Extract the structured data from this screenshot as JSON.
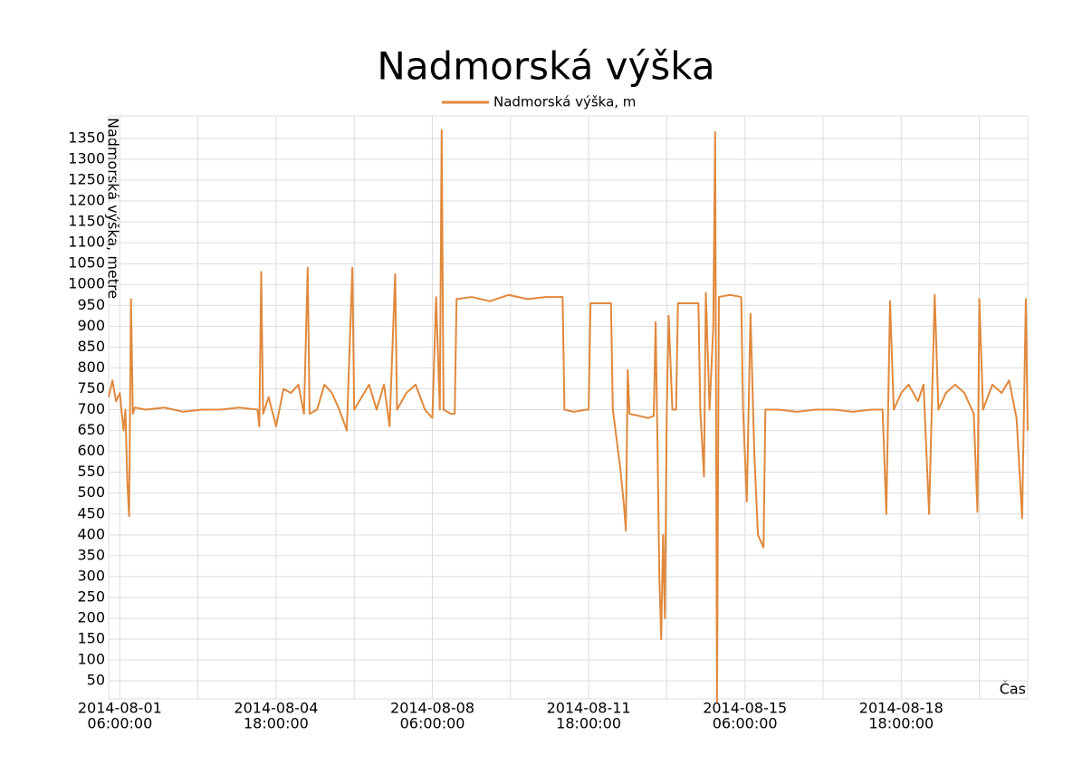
{
  "chart_data": {
    "type": "line",
    "title": "Nadmorská výška",
    "ylabel": "Nadmorská výška, metre",
    "xlabel": "Čas",
    "grid": true,
    "legend": "top",
    "xlim": [
      "2014-08-01 00:00:00",
      "2014-08-21 14:00:00"
    ],
    "ylim": [
      7,
      1404
    ],
    "yticks": [
      50,
      100,
      150,
      200,
      250,
      300,
      350,
      400,
      450,
      500,
      550,
      600,
      650,
      700,
      750,
      800,
      850,
      900,
      950,
      1000,
      1050,
      1100,
      1150,
      1200,
      1250,
      1300,
      1350
    ],
    "xticks": [
      {
        "value": "2014-08-01 06:00:00",
        "label": [
          "2014-08-01",
          "06:00:00"
        ]
      },
      {
        "value": "2014-08-03 00:00:00",
        "label": null
      },
      {
        "value": "2014-08-04 18:00:00",
        "label": [
          "2014-08-04",
          "18:00:00"
        ]
      },
      {
        "value": "2014-08-06 12:00:00",
        "label": null
      },
      {
        "value": "2014-08-08 06:00:00",
        "label": [
          "2014-08-08",
          "06:00:00"
        ]
      },
      {
        "value": "2014-08-10 00:00:00",
        "label": null
      },
      {
        "value": "2014-08-11 18:00:00",
        "label": [
          "2014-08-11",
          "18:00:00"
        ]
      },
      {
        "value": "2014-08-13 12:00:00",
        "label": null
      },
      {
        "value": "2014-08-15 06:00:00",
        "label": [
          "2014-08-15",
          "06:00:00"
        ]
      },
      {
        "value": "2014-08-17 00:00:00",
        "label": null
      },
      {
        "value": "2014-08-18 18:00:00",
        "label": [
          "2014-08-18",
          "18:00:00"
        ]
      },
      {
        "value": "2014-08-20 12:00:00",
        "label": null
      }
    ],
    "x": [
      "2014-08-01 00:00:00",
      "2014-08-01 02:00:00",
      "2014-08-01 04:00:00",
      "2014-08-01 06:00:00",
      "2014-08-01 08:00:00",
      "2014-08-01 09:00:00",
      "2014-08-01 10:00:00",
      "2014-08-01 11:00:00",
      "2014-08-01 12:00:00",
      "2014-08-01 13:00:00",
      "2014-08-01 14:00:00",
      "2014-08-01 20:00:00",
      "2014-08-02 06:00:00",
      "2014-08-02 16:00:00",
      "2014-08-03 02:00:00",
      "2014-08-03 12:00:00",
      "2014-08-03 22:00:00",
      "2014-08-04 08:00:00",
      "2014-08-04 09:00:00",
      "2014-08-04 10:00:00",
      "2014-08-04 11:00:00",
      "2014-08-04 14:00:00",
      "2014-08-04 18:00:00",
      "2014-08-04 22:00:00",
      "2014-08-05 02:00:00",
      "2014-08-05 06:00:00",
      "2014-08-05 09:00:00",
      "2014-08-05 11:00:00",
      "2014-08-05 12:00:00",
      "2014-08-05 16:00:00",
      "2014-08-05 20:00:00",
      "2014-08-06 00:00:00",
      "2014-08-06 04:00:00",
      "2014-08-06 08:00:00",
      "2014-08-06 11:00:00",
      "2014-08-06 12:00:00",
      "2014-08-06 16:00:00",
      "2014-08-06 20:00:00",
      "2014-08-07 00:00:00",
      "2014-08-07 04:00:00",
      "2014-08-07 07:00:00",
      "2014-08-07 10:00:00",
      "2014-08-07 11:00:00",
      "2014-08-07 16:00:00",
      "2014-08-07 21:00:00",
      "2014-08-08 02:00:00",
      "2014-08-08 06:00:00",
      "2014-08-08 08:00:00",
      "2014-08-08 10:00:00",
      "2014-08-08 11:00:00",
      "2014-08-08 12:00:00",
      "2014-08-08 16:00:00",
      "2014-08-08 18:00:00",
      "2014-08-08 19:00:00",
      "2014-08-09 03:00:00",
      "2014-08-09 13:00:00",
      "2014-08-09 23:00:00",
      "2014-08-10 09:00:00",
      "2014-08-10 19:00:00",
      "2014-08-11 04:00:00",
      "2014-08-11 05:00:00",
      "2014-08-11 10:00:00",
      "2014-08-11 17:00:00",
      "2014-08-11 18:00:00",
      "2014-08-11 19:00:00",
      "2014-08-12 01:00:00",
      "2014-08-12 06:00:00",
      "2014-08-12 07:00:00",
      "2014-08-12 11:00:00",
      "2014-08-12 13:00:00",
      "2014-08-12 14:00:00",
      "2014-08-12 15:00:00",
      "2014-08-12 16:00:00",
      "2014-08-12 21:00:00",
      "2014-08-13 02:00:00",
      "2014-08-13 05:00:00",
      "2014-08-13 06:00:00",
      "2014-08-13 07:00:00",
      "2014-08-13 08:00:00",
      "2014-08-13 09:00:00",
      "2014-08-13 10:00:00",
      "2014-08-13 11:00:00",
      "2014-08-13 12:00:00",
      "2014-08-13 13:00:00",
      "2014-08-13 15:00:00",
      "2014-08-13 17:00:00",
      "2014-08-13 18:00:00",
      "2014-08-14 00:00:00",
      "2014-08-14 05:00:00",
      "2014-08-14 06:00:00",
      "2014-08-14 08:00:00",
      "2014-08-14 09:00:00",
      "2014-08-14 11:00:00",
      "2014-08-14 13:00:00",
      "2014-08-14 14:00:00",
      "2014-08-14 15:00:00",
      "2014-08-14 16:00:00",
      "2014-08-14 22:00:00",
      "2014-08-15 04:00:00",
      "2014-08-15 05:00:00",
      "2014-08-15 07:00:00",
      "2014-08-15 09:00:00",
      "2014-08-15 11:00:00",
      "2014-08-15 13:00:00",
      "2014-08-15 16:00:00",
      "2014-08-15 17:00:00",
      "2014-08-16 00:00:00",
      "2014-08-16 10:00:00",
      "2014-08-16 20:00:00",
      "2014-08-17 06:00:00",
      "2014-08-17 16:00:00",
      "2014-08-18 02:00:00",
      "2014-08-18 08:00:00",
      "2014-08-18 10:00:00",
      "2014-08-18 12:00:00",
      "2014-08-18 14:00:00",
      "2014-08-18 18:00:00",
      "2014-08-18 22:00:00",
      "2014-08-19 03:00:00",
      "2014-08-19 06:00:00",
      "2014-08-19 09:00:00",
      "2014-08-19 12:00:00",
      "2014-08-19 14:00:00",
      "2014-08-19 18:00:00",
      "2014-08-19 23:00:00",
      "2014-08-20 04:00:00",
      "2014-08-20 09:00:00",
      "2014-08-20 11:00:00",
      "2014-08-20 12:00:00",
      "2014-08-20 14:00:00",
      "2014-08-20 19:00:00",
      "2014-08-21 00:00:00",
      "2014-08-21 04:00:00",
      "2014-08-21 08:00:00",
      "2014-08-21 11:00:00",
      "2014-08-21 13:00:00",
      "2014-08-21 14:00:00"
    ],
    "series": [
      {
        "name": "Nadmorská výška, m",
        "color": "#e0893d",
        "values": [
          730,
          770,
          720,
          740,
          650,
          700,
          530,
          445,
          965,
          690,
          705,
          700,
          705,
          695,
          700,
          700,
          705,
          700,
          660,
          1030,
          690,
          730,
          660,
          750,
          740,
          760,
          690,
          1040,
          690,
          700,
          760,
          740,
          700,
          650,
          1040,
          700,
          730,
          760,
          700,
          760,
          660,
          1025,
          700,
          740,
          760,
          700,
          680,
          970,
          700,
          1370,
          700,
          690,
          690,
          965,
          970,
          960,
          975,
          965,
          970,
          970,
          700,
          695,
          700,
          700,
          955,
          955,
          955,
          700,
          560,
          470,
          410,
          795,
          690,
          685,
          680,
          685,
          910,
          620,
          300,
          150,
          400,
          200,
          700,
          925,
          700,
          700,
          955,
          955,
          955,
          700,
          540,
          980,
          700,
          900,
          1365,
          0,
          970,
          975,
          970,
          700,
          480,
          930,
          600,
          400,
          370,
          700,
          700,
          695,
          700,
          700,
          695,
          700,
          700,
          450,
          960,
          700,
          740,
          760,
          720,
          760,
          450,
          975,
          700,
          740,
          760,
          740,
          690,
          455,
          965,
          700,
          760,
          740,
          770,
          680,
          440,
          965,
          650
        ]
      }
    ]
  }
}
